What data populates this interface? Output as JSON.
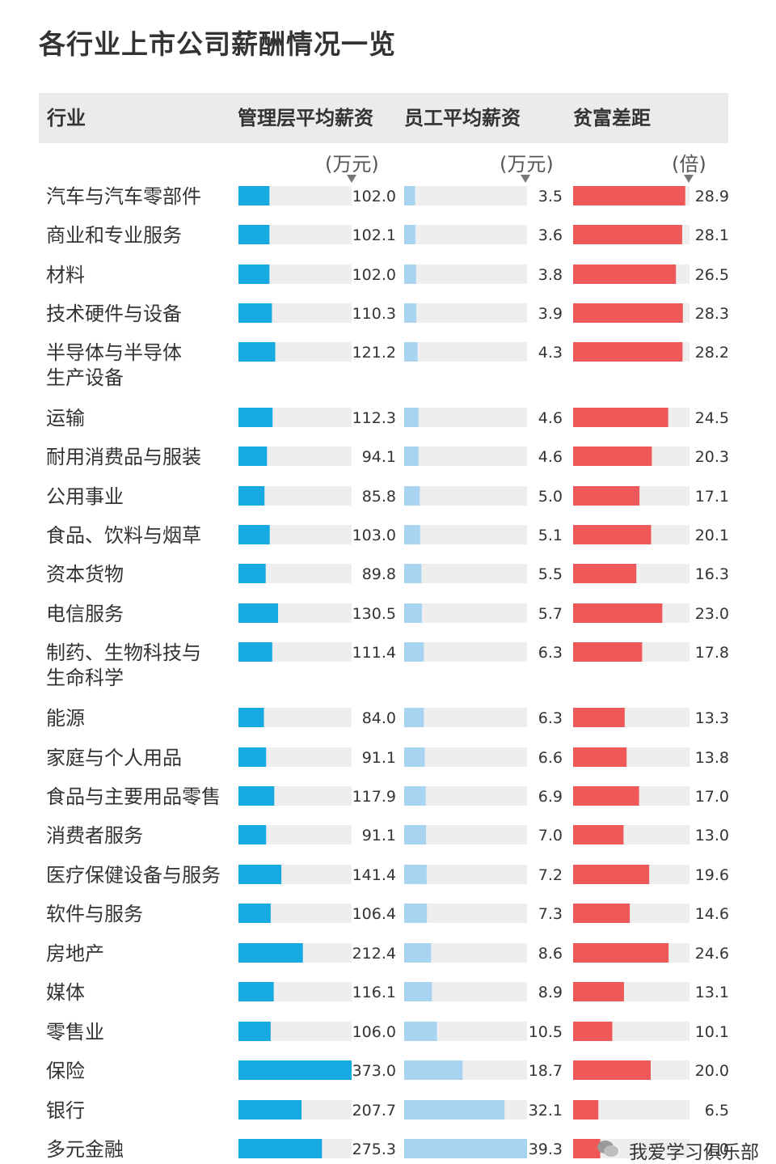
{
  "title": "各行业上市公司薪酬情况一览",
  "headers": {
    "industry": "行业",
    "mgmt": "管理层平均薪资",
    "emp": "员工平均薪资",
    "gap": "贫富差距"
  },
  "units": {
    "mgmt": "(万元)",
    "emp": "(万元)",
    "gap": "(倍)"
  },
  "colors": {
    "mgmt": "#17a9e2",
    "emp": "#a8d4f2",
    "gap": "#ef5858",
    "track": "#eeeeee"
  },
  "watermark": "我爱学习俱乐部",
  "chart_data": {
    "type": "bar",
    "title": "各行业上市公司薪酬情况一览",
    "series": [
      {
        "name": "管理层平均薪资",
        "unit": "(万元)",
        "values": [
          102.0,
          102.1,
          102.0,
          110.3,
          121.2,
          112.3,
          94.1,
          85.8,
          103.0,
          89.8,
          130.5,
          111.4,
          84.0,
          91.1,
          117.9,
          91.1,
          141.4,
          106.4,
          212.4,
          116.1,
          106.0,
          373.0,
          207.7,
          275.3
        ],
        "labels": [
          "102.0",
          "102.1",
          "102.0",
          "110.3",
          "121.2",
          "112.3",
          "94.1",
          "85.8",
          "103.0",
          "89.8",
          "130.5",
          "111.4",
          "84.0",
          "91.1",
          "117.9",
          "91.1",
          "141.4",
          "106.4",
          "212.4",
          "116.1",
          "106.0",
          "373.0",
          "207.7",
          "275.3"
        ]
      },
      {
        "name": "员工平均薪资",
        "unit": "(万元)",
        "values": [
          3.5,
          3.6,
          3.8,
          3.9,
          4.3,
          4.6,
          4.6,
          5.0,
          5.1,
          5.5,
          5.7,
          6.3,
          6.3,
          6.6,
          6.9,
          7.0,
          7.2,
          7.3,
          8.6,
          8.9,
          10.5,
          18.7,
          32.1,
          39.3
        ],
        "labels": [
          "3.5",
          "3.6",
          "3.8",
          "3.9",
          "4.3",
          "4.6",
          "4.6",
          "5.0",
          "5.1",
          "5.5",
          "5.7",
          "6.3",
          "6.3",
          "6.6",
          "6.9",
          "7.0",
          "7.2",
          "7.3",
          "8.6",
          "8.9",
          "10.5",
          "18.7",
          "32.1",
          "39.3"
        ]
      },
      {
        "name": "贫富差距",
        "unit": "(倍)",
        "values": [
          28.9,
          28.1,
          26.5,
          28.3,
          28.2,
          24.5,
          20.3,
          17.1,
          20.1,
          16.3,
          23.0,
          17.8,
          13.3,
          13.8,
          17.0,
          13.0,
          19.6,
          14.6,
          24.6,
          13.1,
          10.1,
          20.0,
          6.5,
          7.0
        ],
        "labels": [
          "28.9",
          "28.1",
          "26.5",
          "28.3",
          "28.2",
          "24.5",
          "20.3",
          "17.1",
          "20.1",
          "16.3",
          "23.0",
          "17.8",
          "13.3",
          "13.8",
          "17.0",
          "13.0",
          "19.6",
          "14.6",
          "24.6",
          "13.1",
          "10.1",
          "20.0",
          "6.5",
          "7.0"
        ]
      }
    ],
    "categories": [
      "汽车与汽车零部件",
      "商业和专业服务",
      "材料",
      "技术硬件与设备",
      "半导体与半导体生产设备",
      "运输",
      "耐用消费品与服装",
      "公用事业",
      "食品、饮料与烟草",
      "资本货物",
      "电信服务",
      "制药、生物科技与生命科学",
      "能源",
      "家庭与个人用品",
      "食品与主要用品零售",
      "消费者服务",
      "医疗保健设备与服务",
      "软件与服务",
      "房地产",
      "媒体",
      "零售业",
      "保险",
      "银行",
      "多元金融"
    ],
    "category_lines": [
      [
        "汽车与汽车零部件"
      ],
      [
        "商业和专业服务"
      ],
      [
        "材料"
      ],
      [
        "技术硬件与设备"
      ],
      [
        "半导体与半导体",
        "生产设备"
      ],
      [
        "运输"
      ],
      [
        "耐用消费品与服装"
      ],
      [
        "公用事业"
      ],
      [
        "食品、饮料与烟草"
      ],
      [
        "资本货物"
      ],
      [
        "电信服务"
      ],
      [
        "制药、生物科技与",
        "生命科学"
      ],
      [
        "能源"
      ],
      [
        "家庭与个人用品"
      ],
      [
        "食品与主要用品零售"
      ],
      [
        "消费者服务"
      ],
      [
        "医疗保健设备与服务"
      ],
      [
        "软件与服务"
      ],
      [
        "房地产"
      ],
      [
        "媒体"
      ],
      [
        "零售业"
      ],
      [
        "保险"
      ],
      [
        "银行"
      ],
      [
        "多元金融"
      ]
    ],
    "xlim": {
      "mgmt": [
        0,
        373.0
      ],
      "emp": [
        0,
        39.3
      ],
      "gap": [
        0,
        30
      ]
    },
    "grid": false,
    "legend": "none"
  }
}
